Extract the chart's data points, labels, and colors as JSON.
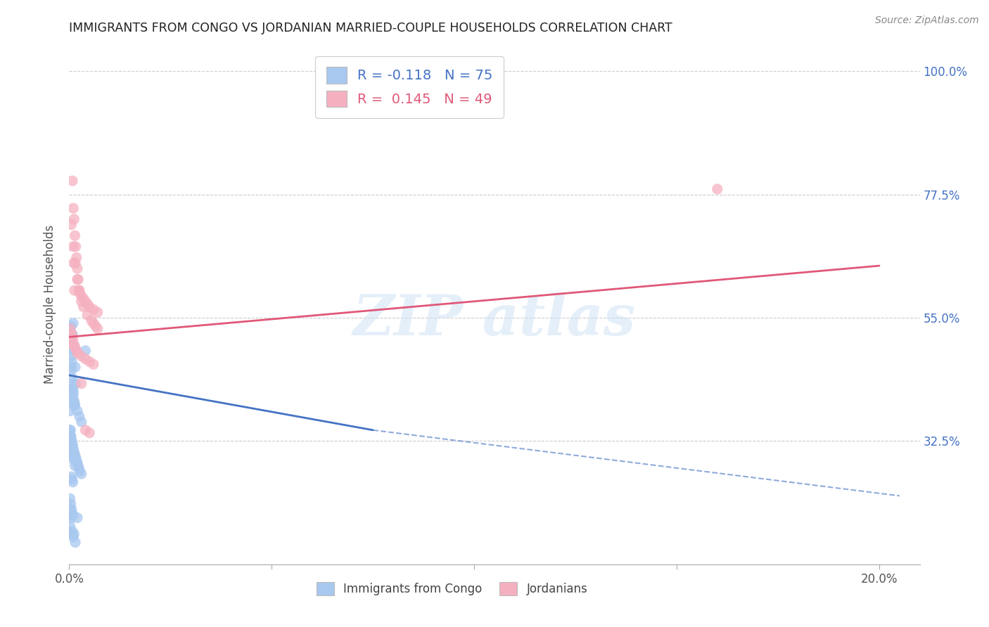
{
  "title": "IMMIGRANTS FROM CONGO VS JORDANIAN MARRIED-COUPLE HOUSEHOLDS CORRELATION CHART",
  "source": "Source: ZipAtlas.com",
  "ylabel": "Married-couple Households",
  "legend_entry1": "R = -0.118   N = 75",
  "legend_entry2": "R =  0.145   N = 49",
  "legend_label1": "Immigrants from Congo",
  "legend_label2": "Jordanians",
  "scatter_blue": [
    [
      0.0002,
      0.53
    ],
    [
      0.0003,
      0.52
    ],
    [
      0.0003,
      0.51
    ],
    [
      0.0004,
      0.535
    ],
    [
      0.0004,
      0.5
    ],
    [
      0.0005,
      0.49
    ],
    [
      0.0005,
      0.48
    ],
    [
      0.0005,
      0.46
    ],
    [
      0.0006,
      0.47
    ],
    [
      0.0006,
      0.455
    ],
    [
      0.0007,
      0.44
    ],
    [
      0.0008,
      0.52
    ],
    [
      0.0008,
      0.43
    ],
    [
      0.0009,
      0.42
    ],
    [
      0.001,
      0.415
    ],
    [
      0.001,
      0.41
    ],
    [
      0.001,
      0.54
    ],
    [
      0.0011,
      0.4
    ],
    [
      0.0012,
      0.5
    ],
    [
      0.0013,
      0.395
    ],
    [
      0.0014,
      0.39
    ],
    [
      0.0015,
      0.46
    ],
    [
      0.0016,
      0.43
    ],
    [
      0.0002,
      0.38
    ],
    [
      0.0003,
      0.345
    ],
    [
      0.0003,
      0.42
    ],
    [
      0.0004,
      0.335
    ],
    [
      0.0005,
      0.415
    ],
    [
      0.0005,
      0.33
    ],
    [
      0.0006,
      0.325
    ],
    [
      0.0007,
      0.41
    ],
    [
      0.0008,
      0.32
    ],
    [
      0.0009,
      0.315
    ],
    [
      0.001,
      0.31
    ],
    [
      0.0011,
      0.395
    ],
    [
      0.0012,
      0.305
    ],
    [
      0.0013,
      0.39
    ],
    [
      0.0014,
      0.3
    ],
    [
      0.0015,
      0.295
    ],
    [
      0.0016,
      0.295
    ],
    [
      0.0018,
      0.29
    ],
    [
      0.002,
      0.38
    ],
    [
      0.002,
      0.285
    ],
    [
      0.0022,
      0.28
    ],
    [
      0.0024,
      0.275
    ],
    [
      0.0025,
      0.37
    ],
    [
      0.0026,
      0.27
    ],
    [
      0.003,
      0.36
    ],
    [
      0.003,
      0.265
    ],
    [
      0.004,
      0.49
    ],
    [
      0.0002,
      0.345
    ],
    [
      0.0003,
      0.335
    ],
    [
      0.0004,
      0.31
    ],
    [
      0.0005,
      0.26
    ],
    [
      0.0006,
      0.305
    ],
    [
      0.0007,
      0.255
    ],
    [
      0.0008,
      0.3
    ],
    [
      0.0009,
      0.25
    ],
    [
      0.001,
      0.295
    ],
    [
      0.0012,
      0.29
    ],
    [
      0.0014,
      0.28
    ],
    [
      0.0002,
      0.22
    ],
    [
      0.0004,
      0.21
    ],
    [
      0.0006,
      0.2
    ],
    [
      0.001,
      0.19
    ],
    [
      0.002,
      0.185
    ],
    [
      0.0005,
      0.155
    ],
    [
      0.001,
      0.15
    ],
    [
      0.0015,
      0.14
    ],
    [
      0.0003,
      0.2
    ],
    [
      0.0004,
      0.19
    ],
    [
      0.0005,
      0.185
    ],
    [
      0.0002,
      0.17
    ],
    [
      0.0008,
      0.16
    ],
    [
      0.0012,
      0.155
    ]
  ],
  "scatter_pink": [
    [
      0.0003,
      0.53
    ],
    [
      0.0004,
      0.52
    ],
    [
      0.0005,
      0.72
    ],
    [
      0.0006,
      0.52
    ],
    [
      0.0007,
      0.51
    ],
    [
      0.0008,
      0.8
    ],
    [
      0.0009,
      0.68
    ],
    [
      0.0009,
      0.51
    ],
    [
      0.001,
      0.75
    ],
    [
      0.001,
      0.5
    ],
    [
      0.0011,
      0.65
    ],
    [
      0.0012,
      0.73
    ],
    [
      0.0012,
      0.5
    ],
    [
      0.0013,
      0.6
    ],
    [
      0.0014,
      0.7
    ],
    [
      0.0015,
      0.495
    ],
    [
      0.0015,
      0.65
    ],
    [
      0.0016,
      0.68
    ],
    [
      0.0018,
      0.49
    ],
    [
      0.0018,
      0.66
    ],
    [
      0.002,
      0.64
    ],
    [
      0.002,
      0.62
    ],
    [
      0.0021,
      0.485
    ],
    [
      0.0022,
      0.62
    ],
    [
      0.0024,
      0.6
    ],
    [
      0.0025,
      0.6
    ],
    [
      0.0026,
      0.595
    ],
    [
      0.003,
      0.59
    ],
    [
      0.003,
      0.58
    ],
    [
      0.003,
      0.48
    ],
    [
      0.003,
      0.43
    ],
    [
      0.0035,
      0.585
    ],
    [
      0.0035,
      0.57
    ],
    [
      0.004,
      0.58
    ],
    [
      0.004,
      0.475
    ],
    [
      0.004,
      0.345
    ],
    [
      0.0045,
      0.575
    ],
    [
      0.0045,
      0.555
    ],
    [
      0.005,
      0.57
    ],
    [
      0.005,
      0.47
    ],
    [
      0.005,
      0.34
    ],
    [
      0.0055,
      0.545
    ],
    [
      0.006,
      0.565
    ],
    [
      0.006,
      0.54
    ],
    [
      0.006,
      0.465
    ],
    [
      0.0065,
      0.535
    ],
    [
      0.007,
      0.56
    ],
    [
      0.007,
      0.53
    ],
    [
      0.16,
      0.785
    ]
  ],
  "blue_line": {
    "x": [
      0.0,
      0.075
    ],
    "y": [
      0.445,
      0.345
    ]
  },
  "blue_dashed": {
    "x": [
      0.075,
      0.205
    ],
    "y": [
      0.345,
      0.225
    ]
  },
  "pink_line": {
    "x": [
      0.0,
      0.2
    ],
    "y": [
      0.515,
      0.645
    ]
  },
  "xlim": [
    0.0,
    0.21
  ],
  "ylim": [
    0.1,
    1.05
  ],
  "xtick_positions": [
    0.0,
    0.05,
    0.1,
    0.15,
    0.2
  ],
  "xtick_show": [
    true,
    false,
    false,
    false,
    true
  ],
  "xtick_labels_show": [
    "0.0%",
    "",
    "",
    "",
    "20.0%"
  ],
  "ytick_vals": [
    0.325,
    0.55,
    0.775,
    1.0
  ],
  "ytick_labels": [
    "32.5%",
    "55.0%",
    "77.5%",
    "100.0%"
  ],
  "color_blue": "#a8c8f0",
  "color_pink": "#f5b0c0",
  "line_blue": "#4472c4",
  "line_pink": "#e05878"
}
